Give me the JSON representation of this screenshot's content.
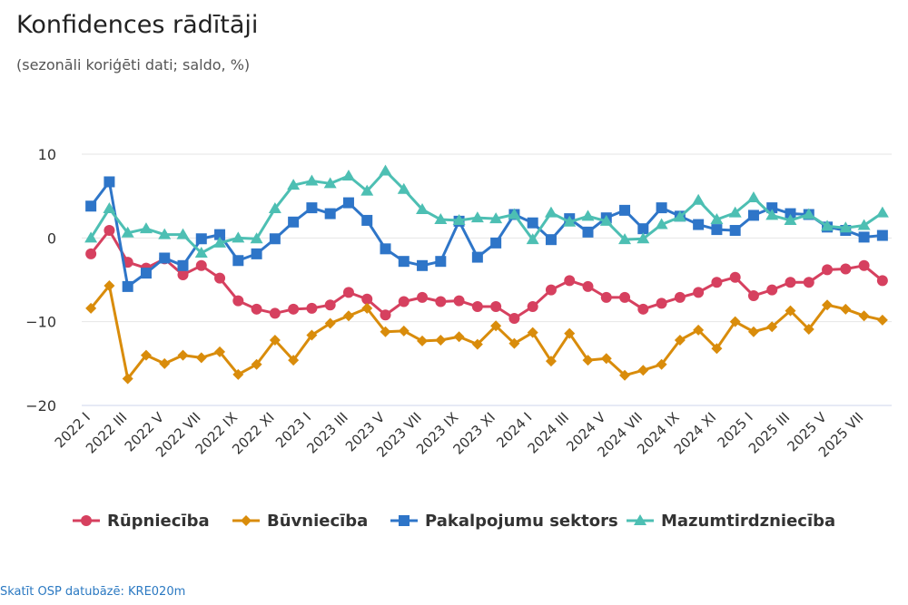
{
  "chart_data": {
    "type": "line",
    "title": "Konfidences rādītāji",
    "subtitle": "(sezonāli koriģēti dati; saldo, %)",
    "xlabel": "",
    "ylabel": "",
    "ylim": [
      -20,
      10
    ],
    "yticks": [
      10,
      0,
      -10,
      -20
    ],
    "ytick_labels": [
      "10",
      "0",
      "−10",
      "−20"
    ],
    "grid": "horizontal",
    "legend_position": "bottom",
    "x": [
      "2022 I",
      "2022 II",
      "2022 III",
      "2022 IV",
      "2022 V",
      "2022 VI",
      "2022 VII",
      "2022 VIII",
      "2022 IX",
      "2022 X",
      "2022 XI",
      "2022 XII",
      "2023 I",
      "2023 II",
      "2023 III",
      "2023 IV",
      "2023 V",
      "2023 VI",
      "2023 VII",
      "2023 VIII",
      "2023 IX",
      "2023 X",
      "2023 XI",
      "2023 XII",
      "2024 I",
      "2024 II",
      "2024 III",
      "2024 IV",
      "2024 V",
      "2024 VI",
      "2024 VII",
      "2024 VIII",
      "2024 IX",
      "2024 X",
      "2024 XI",
      "2024 XII",
      "2025 I",
      "2025 II",
      "2025 III",
      "2025 IV",
      "2025 V",
      "2025 VI",
      "2025 VII",
      "2025 VIII"
    ],
    "xtick_labels": [
      "2022 I",
      "2022 III",
      "2022 V",
      "2022 VII",
      "2022 IX",
      "2022 XI",
      "2023 I",
      "2023 III",
      "2023 V",
      "2023 VII",
      "2023 IX",
      "2023 XI",
      "2024 I",
      "2024 III",
      "2024 V",
      "2024 VII",
      "2024 IX",
      "2024 XI",
      "2025 I",
      "2025 III",
      "2025 V",
      "2025 VII"
    ],
    "series": [
      {
        "name": "Rūpniecība",
        "color": "#d6405f",
        "marker": "circle",
        "values": [
          -1.9,
          0.9,
          -2.9,
          -3.6,
          -2.5,
          -4.4,
          -3.3,
          -4.8,
          -7.5,
          -8.5,
          -9.0,
          -8.5,
          -8.4,
          -8.0,
          -6.5,
          -7.3,
          -9.2,
          -7.6,
          -7.1,
          -7.6,
          -7.5,
          -8.2,
          -8.2,
          -9.6,
          -8.2,
          -6.2,
          -5.1,
          -5.8,
          -7.1,
          -7.1,
          -8.5,
          -7.8,
          -7.1,
          -6.5,
          -5.3,
          -4.7,
          -6.9,
          -6.2,
          -5.3,
          -5.3,
          -3.8,
          -3.7,
          -3.3,
          -5.1
        ]
      },
      {
        "name": "Būvniecība",
        "color": "#d98c0b",
        "marker": "diamond",
        "values": [
          -8.4,
          -5.7,
          -16.8,
          -14.0,
          -15.0,
          -14.0,
          -14.3,
          -13.6,
          -16.3,
          -15.1,
          -12.2,
          -14.6,
          -11.6,
          -10.2,
          -9.3,
          -8.4,
          -11.2,
          -11.1,
          -12.3,
          -12.2,
          -11.8,
          -12.7,
          -10.5,
          -12.6,
          -11.3,
          -14.7,
          -11.4,
          -14.6,
          -14.4,
          -16.4,
          -15.8,
          -15.1,
          -12.2,
          -11.0,
          -13.2,
          -10.0,
          -11.2,
          -10.6,
          -8.7,
          -10.9,
          -8.0,
          -8.5,
          -9.3,
          -9.8
        ]
      },
      {
        "name": "Pakalpojumu sektors",
        "color": "#2e75c8",
        "marker": "square",
        "values": [
          3.8,
          6.7,
          -5.8,
          -4.2,
          -2.4,
          -3.3,
          -0.1,
          0.4,
          -2.7,
          -1.9,
          -0.1,
          1.9,
          3.6,
          2.9,
          4.2,
          2.1,
          -1.3,
          -2.8,
          -3.3,
          -2.8,
          2.0,
          -2.3,
          -0.6,
          2.8,
          1.8,
          -0.2,
          2.3,
          0.7,
          2.4,
          3.3,
          1.1,
          3.6,
          2.6,
          1.6,
          1.0,
          0.9,
          2.7,
          3.6,
          2.9,
          2.8,
          1.3,
          0.9,
          0.1,
          0.3
        ]
      },
      {
        "name": "Mazumtirdzniecība",
        "color": "#4dbfb3",
        "marker": "triangle",
        "values": [
          0.0,
          3.5,
          0.6,
          1.1,
          0.4,
          0.4,
          -1.8,
          -0.6,
          0.0,
          -0.1,
          3.5,
          6.3,
          6.8,
          6.5,
          7.4,
          5.6,
          8.0,
          5.8,
          3.4,
          2.2,
          2.1,
          2.4,
          2.3,
          2.8,
          -0.2,
          3.0,
          1.9,
          2.6,
          2.0,
          -0.2,
          -0.1,
          1.6,
          2.5,
          4.5,
          2.2,
          3.0,
          4.8,
          2.7,
          2.1,
          2.8,
          1.4,
          1.2,
          1.5,
          3.0
        ]
      }
    ]
  },
  "source": {
    "text": "Skatīt OSP datubāzē: KRE020m"
  }
}
